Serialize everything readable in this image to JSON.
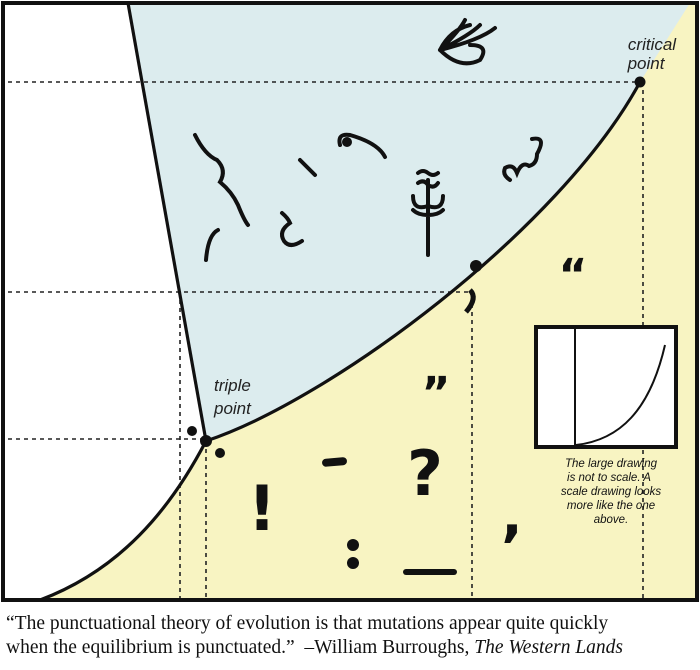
{
  "diagram": {
    "labels": {
      "critical_line1": "critical",
      "critical_line2": "point",
      "triple_line1": "triple",
      "triple_line2": "point"
    },
    "symbols": {
      "exclamation": "!",
      "question": "?",
      "dash": "-",
      "colon": ":",
      "underscore": "_",
      "comma": ",",
      "close_quote": "”",
      "open_quote": "“"
    },
    "inset": {
      "note_lines": [
        "The large drawing",
        "is not to scale.  A",
        "scale drawing looks",
        "more like the one",
        "above."
      ]
    },
    "colors": {
      "region_upper": "#dcecee",
      "region_lower": "#f8f4c2",
      "region_left": "#ffffff",
      "line": "#111111"
    }
  },
  "caption": {
    "quote_line1": "“The punctuational theory of evolution is that mutations appear quite quickly",
    "quote_line2": "when the equilibrium is punctuated.”  –William Burroughs, ",
    "source_title": "The Western Lands"
  }
}
